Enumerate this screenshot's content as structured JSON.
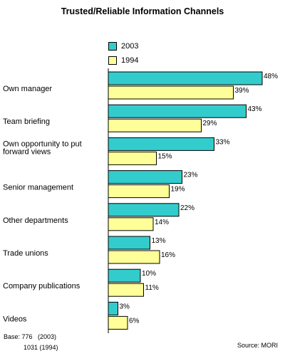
{
  "chart_data": {
    "type": "bar",
    "orientation": "horizontal",
    "title": "Trusted/Reliable Information Channels",
    "categories": [
      "Own manager",
      "Team briefing",
      "Own opportunity to put forward views",
      "Senior management",
      "Other departments",
      "Trade unions",
      "Company publications",
      "Videos"
    ],
    "series": [
      {
        "name": "2003",
        "color": "#33cccc",
        "values": [
          48,
          43,
          33,
          23,
          22,
          13,
          10,
          3
        ]
      },
      {
        "name": "1994",
        "color": "#ffff99",
        "values": [
          39,
          29,
          15,
          19,
          14,
          16,
          11,
          6
        ]
      }
    ],
    "value_suffix": "%",
    "xlim": [
      0,
      50
    ],
    "grid": false,
    "legend_position": "top"
  },
  "footer": {
    "base_line1": "Base: 776   (2003)",
    "base_line2": "1031 (1994)",
    "source": "Source: MORI"
  }
}
